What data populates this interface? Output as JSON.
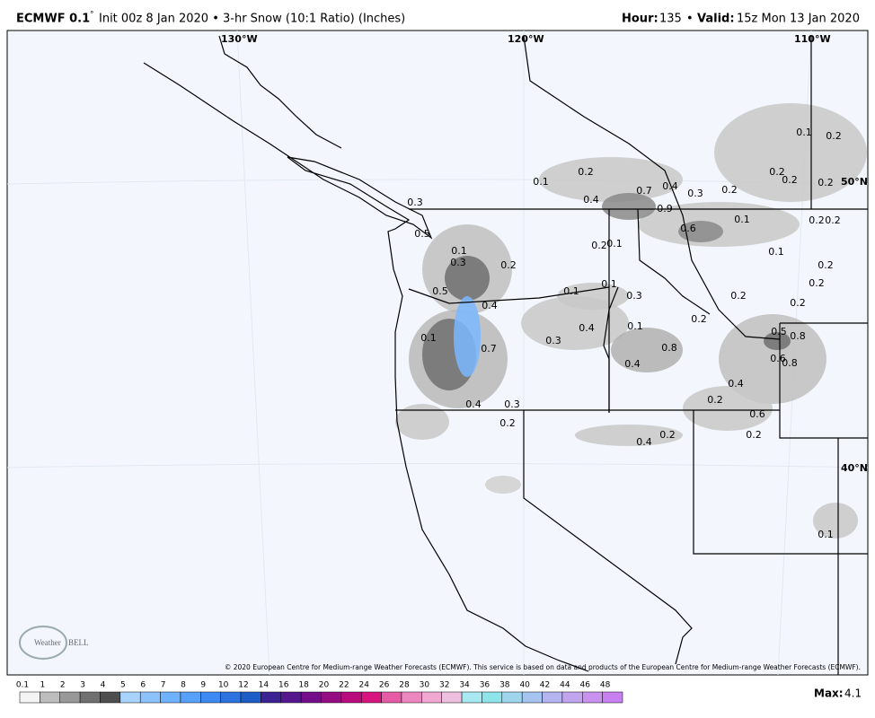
{
  "header": {
    "model": "ECMWF 0.1",
    "degree": "°",
    "title": "Init 00z 8 Jan 2020 • 3-hr Snow (10:1 Ratio) (Inches)",
    "hour_label": "Hour:",
    "hour": 135,
    "separator": "•",
    "valid_label": "Valid:",
    "valid": "15z Mon 13 Jan 2020"
  },
  "map": {
    "grid_labels": [
      "130°W",
      "120°W",
      "110°W",
      "50°N",
      "40°N"
    ],
    "spot_values": [
      0.1,
      0.2,
      0.4,
      0.7,
      0.4,
      0.3,
      0.2,
      0.2,
      0.2,
      0.1,
      0.2,
      0.2,
      0.9,
      0.6,
      0.1,
      0.2,
      0.2,
      0.1,
      0.2,
      0.2,
      0.3,
      0.5,
      0.1,
      0.3,
      0.2,
      0.2,
      0.1,
      0.1,
      0.1,
      0.3,
      0.2,
      0.2,
      0.5,
      0.4,
      0.2,
      0.5,
      0.8,
      0.1,
      0.4,
      0.3,
      0.1,
      0.7,
      0.8,
      0.4,
      0.6,
      0.8,
      0.4,
      0.2,
      0.4,
      0.3,
      0.6,
      0.2,
      0.2,
      0.4,
      0.2,
      0.1
    ],
    "copyright": "© 2020 European Centre for Medium-range Weather Forecasts (ECMWF). This service is based on data and products of the European Centre for Medium-range Weather Forecasts (ECMWF).",
    "logo": {
      "first": "Weather",
      "second": "BELL"
    }
  },
  "legend": {
    "labels": [
      0.1,
      1,
      2,
      3,
      4,
      5,
      6,
      7,
      8,
      9,
      10,
      12,
      14,
      16,
      18,
      20,
      22,
      24,
      26,
      28,
      30,
      32,
      34,
      36,
      38,
      40,
      42,
      44,
      46,
      48
    ],
    "colors": [
      "#f4f4f4",
      "#bdbdbd",
      "#999999",
      "#707070",
      "#4e4e4e",
      "#a9d3ff",
      "#8cc3ff",
      "#6fb2ff",
      "#57a0fb",
      "#3f8af2",
      "#2d73df",
      "#1d5cc6",
      "#3b2393",
      "#55188c",
      "#731089",
      "#960c82",
      "#b80b7c",
      "#d8157f",
      "#e65aa6",
      "#ec86bf",
      "#f0a8d2",
      "#eec0e0",
      "#a8e8f0",
      "#8ee4ea",
      "#9ed4ec",
      "#a6c4f0",
      "#b4b4f0",
      "#c0a4ee",
      "#c892ee",
      "#c880f0"
    ],
    "max_label": "Max:",
    "max": 4.1
  }
}
